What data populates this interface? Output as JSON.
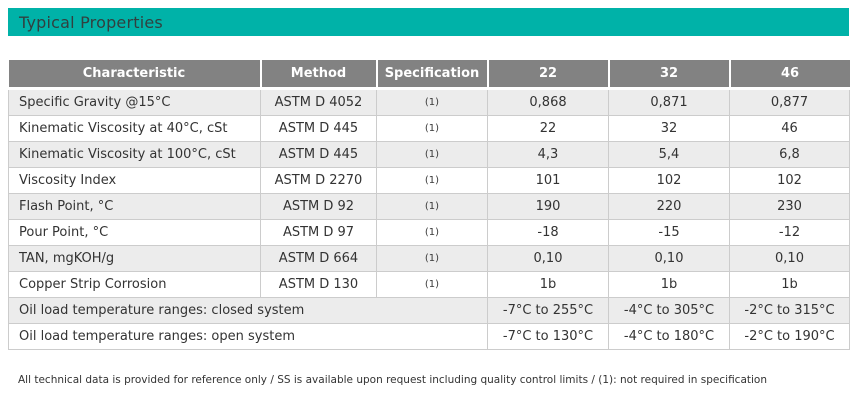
{
  "title": "Typical Properties",
  "colors": {
    "accent_teal": "#00B2A8",
    "header_gray": "#828282",
    "stripe_gray": "#ECECEC",
    "border_gray": "#CCCCCC"
  },
  "table": {
    "columns": [
      "Characteristic",
      "Method",
      "Specification",
      "22",
      "32",
      "46"
    ],
    "rows": [
      {
        "cells": [
          "Specific Gravity @15°C",
          "ASTM D 4052",
          "(1)",
          "0,868",
          "0,871",
          "0,877"
        ]
      },
      {
        "cells": [
          "Kinematic Viscosity at 40°C, cSt",
          "ASTM D 445",
          "(1)",
          "22",
          "32",
          "46"
        ]
      },
      {
        "cells": [
          "Kinematic Viscosity at 100°C, cSt",
          "ASTM D 445",
          "(1)",
          "4,3",
          "5,4",
          "6,8"
        ]
      },
      {
        "cells": [
          "Viscosity Index",
          "ASTM D 2270",
          "(1)",
          "101",
          "102",
          "102"
        ]
      },
      {
        "cells": [
          "Flash Point, °C",
          "ASTM D 92",
          "(1)",
          "190",
          "220",
          "230"
        ]
      },
      {
        "cells": [
          "Pour Point, °C",
          "ASTM D 97",
          "(1)",
          "-18",
          "-15",
          "-12"
        ]
      },
      {
        "cells": [
          "TAN, mgKOH/g",
          "ASTM D 664",
          "(1)",
          "0,10",
          "0,10",
          "0,10"
        ]
      },
      {
        "cells": [
          "Copper Strip Corrosion",
          "ASTM D 130",
          "(1)",
          "1b",
          "1b",
          "1b"
        ]
      },
      {
        "cells": [
          "Oil load temperature ranges: closed system",
          "-7°C to 255°C",
          "-4°C to 305°C",
          "-2°C to 315°C"
        ],
        "first_colspan": 3
      },
      {
        "cells": [
          "Oil load temperature ranges: open system",
          "-7°C to 130°C",
          "-4°C to 180°C",
          "-2°C to 190°C"
        ],
        "first_colspan": 3
      }
    ]
  },
  "footnote": "All technical data is provided for reference only / SS is available upon request including quality control limits / (1): not required in specification"
}
